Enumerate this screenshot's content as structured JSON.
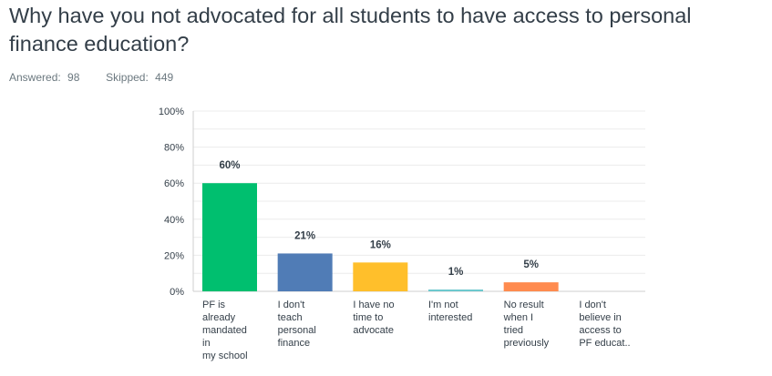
{
  "question": {
    "title": "Why have you not advocated for all students to have access to personal finance education?"
  },
  "stats": {
    "answered_label": "Answered:",
    "answered_value": "98",
    "skipped_label": "Skipped:",
    "skipped_value": "449"
  },
  "chart_data": {
    "type": "bar",
    "categories": [
      "PF is already mandated in my school",
      "I don't teach personal finance",
      "I have no time to advocate",
      "I'm not interested",
      "No result when I tried previously",
      "I don't believe in access to PF educat.."
    ],
    "category_lines": [
      [
        "PF is",
        "already",
        "mandated",
        "in",
        "my school"
      ],
      [
        "I don't",
        "teach",
        "personal",
        "finance"
      ],
      [
        "I have no",
        "time to",
        "advocate"
      ],
      [
        "I'm not",
        "interested"
      ],
      [
        "No result",
        "when I",
        "tried",
        "previously"
      ],
      [
        "I don't",
        "believe in",
        "access to",
        "PF educat.."
      ]
    ],
    "values": [
      60,
      21,
      16,
      1,
      5,
      0
    ],
    "data_labels": [
      "60%",
      "21%",
      "16%",
      "1%",
      "5%",
      ""
    ],
    "colors": [
      "#00bf6f",
      "#507cb6",
      "#ffbf2b",
      "#6bc8cd",
      "#ff8b4f",
      "#e7e7e7"
    ],
    "y_ticks": [
      0,
      20,
      40,
      60,
      80,
      100
    ],
    "y_tick_labels": [
      "0%",
      "20%",
      "40%",
      "60%",
      "80%",
      "100%"
    ],
    "ylim": [
      0,
      100
    ],
    "grid": true
  }
}
